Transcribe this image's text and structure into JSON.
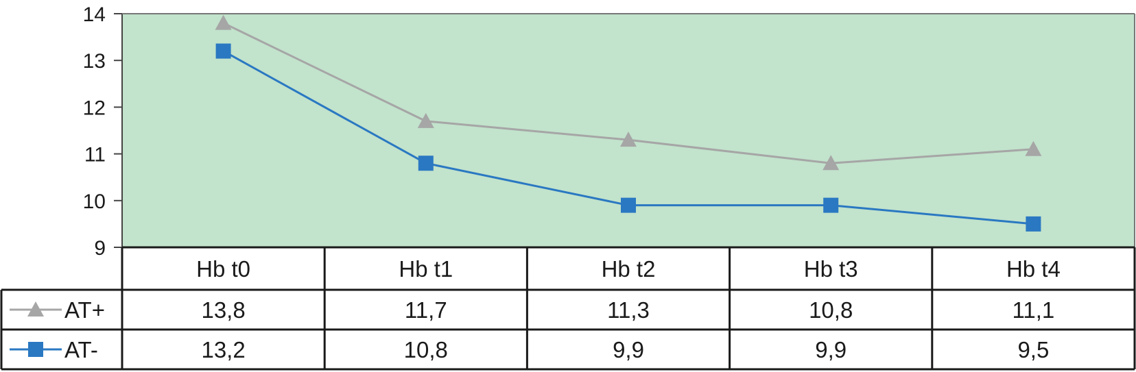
{
  "chart_data": {
    "type": "line",
    "title": "",
    "xlabel": "",
    "ylabel": "",
    "categories": [
      "Hb t0",
      "Hb t1",
      "Hb t2",
      "Hb t3",
      "Hb t4"
    ],
    "ylim": [
      9,
      14
    ],
    "yticks": [
      "9",
      "10",
      "11",
      "12",
      "13",
      "14"
    ],
    "grid": false,
    "legend": "data-table-left",
    "plot_background": "#c2e3cc",
    "series": [
      {
        "name": "AT+",
        "values": [
          13.8,
          11.7,
          11.3,
          10.8,
          11.1
        ],
        "labels": [
          "13,8",
          "11,7",
          "11,3",
          "10,8",
          "11,1"
        ],
        "color": "#a6a6a6",
        "marker": "triangle"
      },
      {
        "name": "AT-",
        "values": [
          13.2,
          10.8,
          9.9,
          9.9,
          9.5
        ],
        "labels": [
          "13,2",
          "10,8",
          "9,9",
          "9,9",
          "9,5"
        ],
        "color": "#2a78c2",
        "marker": "square"
      }
    ]
  }
}
